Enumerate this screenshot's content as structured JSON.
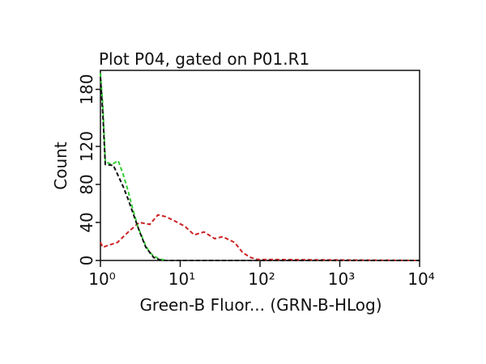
{
  "chart_data": {
    "type": "line",
    "title": "Plot P04, gated on P01.R1",
    "xlabel": "Green-B Fluor... (GRN-B-HLog)",
    "ylabel": "Count",
    "xscale": "log",
    "xlim": [
      1,
      10000
    ],
    "xticks": [
      {
        "value": 1,
        "label": "10⁰"
      },
      {
        "value": 10,
        "label": "10¹"
      },
      {
        "value": 100,
        "label": "10²"
      },
      {
        "value": 1000,
        "label": "10³"
      },
      {
        "value": 10000,
        "label": "10⁴"
      }
    ],
    "ylim": [
      0,
      200
    ],
    "yticks": [
      0,
      40,
      80,
      120,
      180
    ],
    "series": [
      {
        "color": "#cc2222",
        "x": [
          1,
          1.07,
          1.63,
          2.3,
          3.07,
          4.16,
          5.26,
          6.6,
          8.3,
          11.4,
          15,
          19.9,
          27,
          34,
          48,
          61,
          77,
          93,
          10000
        ],
        "values": [
          19,
          14,
          19,
          31,
          40,
          38,
          48,
          46,
          42,
          36,
          27,
          30,
          23,
          25,
          19,
          8,
          3,
          1,
          0
        ]
      },
      {
        "color": "#33cc33",
        "x": [
          1,
          1.07,
          1.15,
          1.39,
          1.67,
          1.92,
          2.21,
          2.49,
          2.93,
          3.53,
          4.16,
          5.26,
          6.6
        ],
        "values": [
          197,
          163,
          104,
          101,
          105,
          91,
          74,
          57,
          36,
          19,
          8,
          2,
          0
        ]
      },
      {
        "color": "#111111",
        "x": [
          1,
          1.07,
          1.15,
          1.45,
          1.63,
          1.92,
          2.21,
          2.6,
          3.07,
          3.7,
          4.67,
          5.9,
          10000
        ],
        "values": [
          193,
          155,
          101,
          100,
          91,
          78,
          65,
          48,
          31,
          14,
          3,
          0,
          0
        ]
      }
    ]
  }
}
